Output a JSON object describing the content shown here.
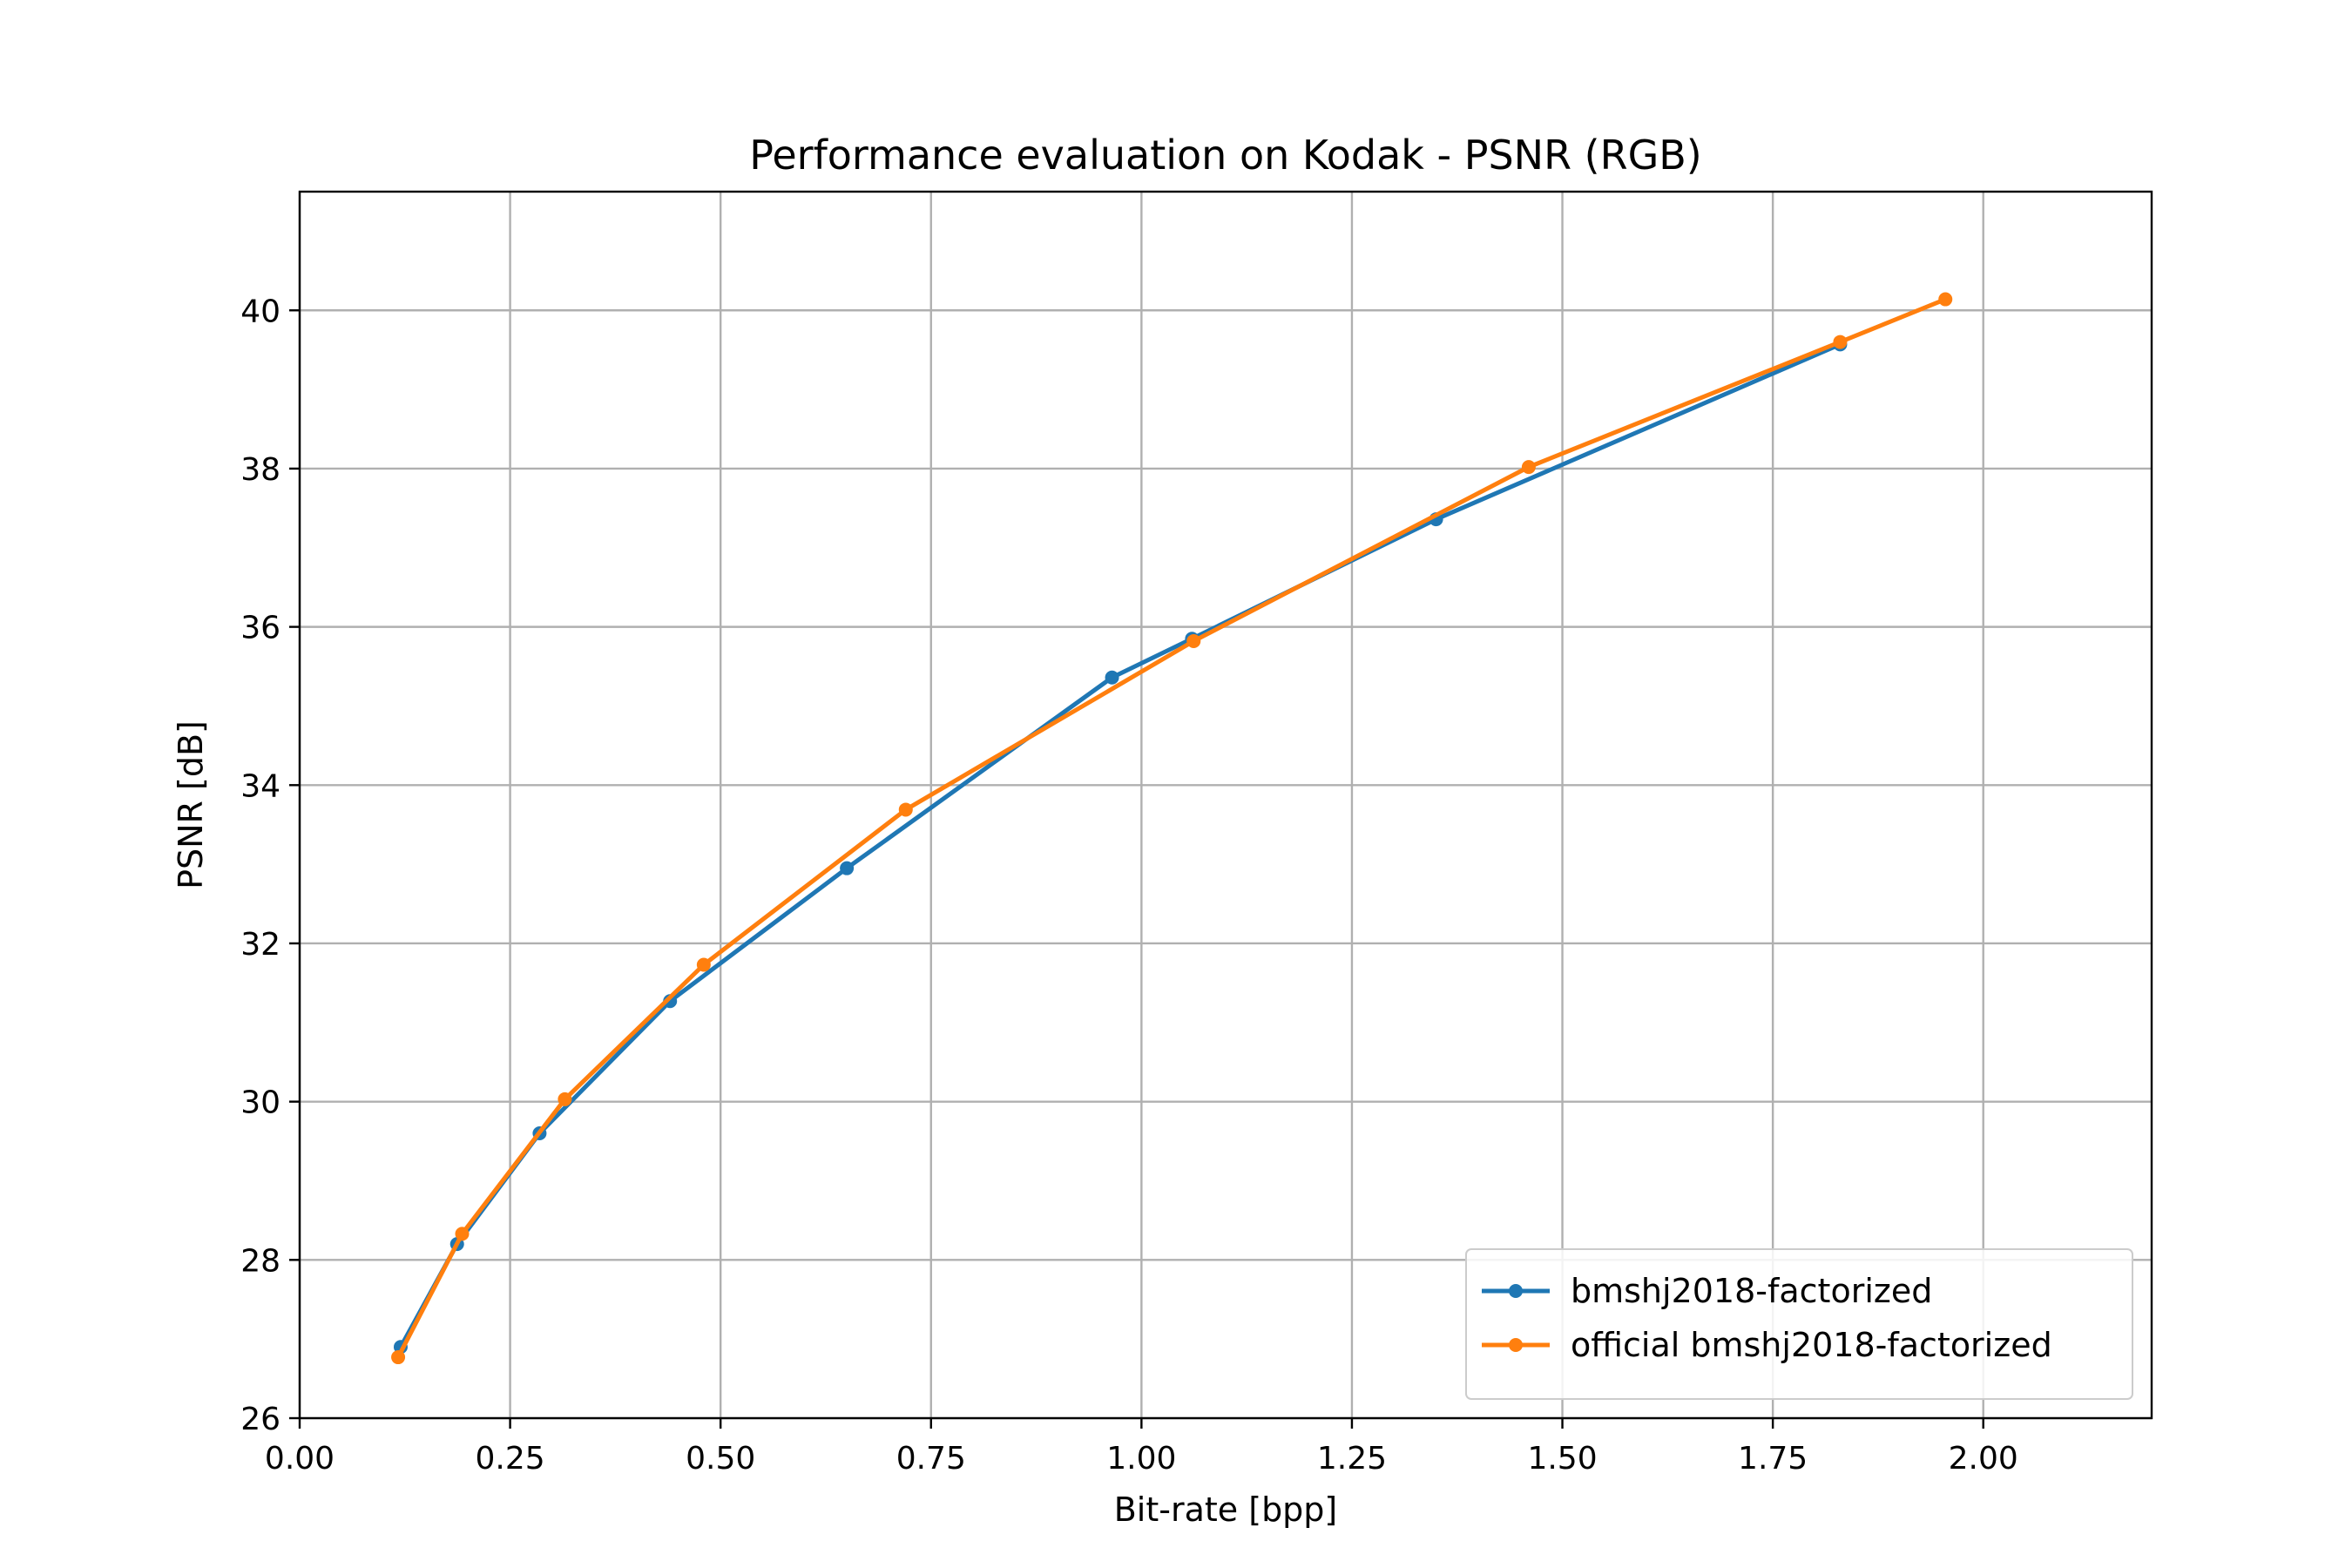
{
  "chart_data": {
    "type": "line",
    "title": "Performance evaluation on Kodak - PSNR (RGB)",
    "xlabel": "Bit-rate [bpp]",
    "ylabel": "PSNR [dB]",
    "xlim": [
      0.0,
      2.2
    ],
    "ylim": [
      26.0,
      41.5
    ],
    "x_ticks": [
      "0.00",
      "0.25",
      "0.50",
      "0.75",
      "1.00",
      "1.25",
      "1.50",
      "1.75",
      "2.00"
    ],
    "y_ticks": [
      "26",
      "28",
      "30",
      "32",
      "34",
      "36",
      "38",
      "40"
    ],
    "grid": true,
    "legend_position": "lower-right",
    "series": [
      {
        "name": "bmshj2018-factorized",
        "color": "#1f77b4",
        "marker": "circle",
        "x": [
          0.12,
          0.187,
          0.285,
          0.44,
          0.65,
          0.965,
          1.06,
          1.35,
          1.83
        ],
        "y": [
          26.9,
          28.2,
          29.6,
          31.27,
          32.95,
          35.36,
          35.85,
          37.36,
          39.57
        ]
      },
      {
        "name": "official bmshj2018-factorized",
        "color": "#ff7f0e",
        "marker": "circle",
        "x": [
          0.117,
          0.193,
          0.315,
          0.48,
          0.72,
          1.062,
          1.46,
          1.83,
          1.955
        ],
        "y": [
          26.77,
          28.33,
          30.03,
          31.73,
          33.69,
          35.82,
          38.02,
          39.6,
          40.14
        ]
      }
    ]
  }
}
